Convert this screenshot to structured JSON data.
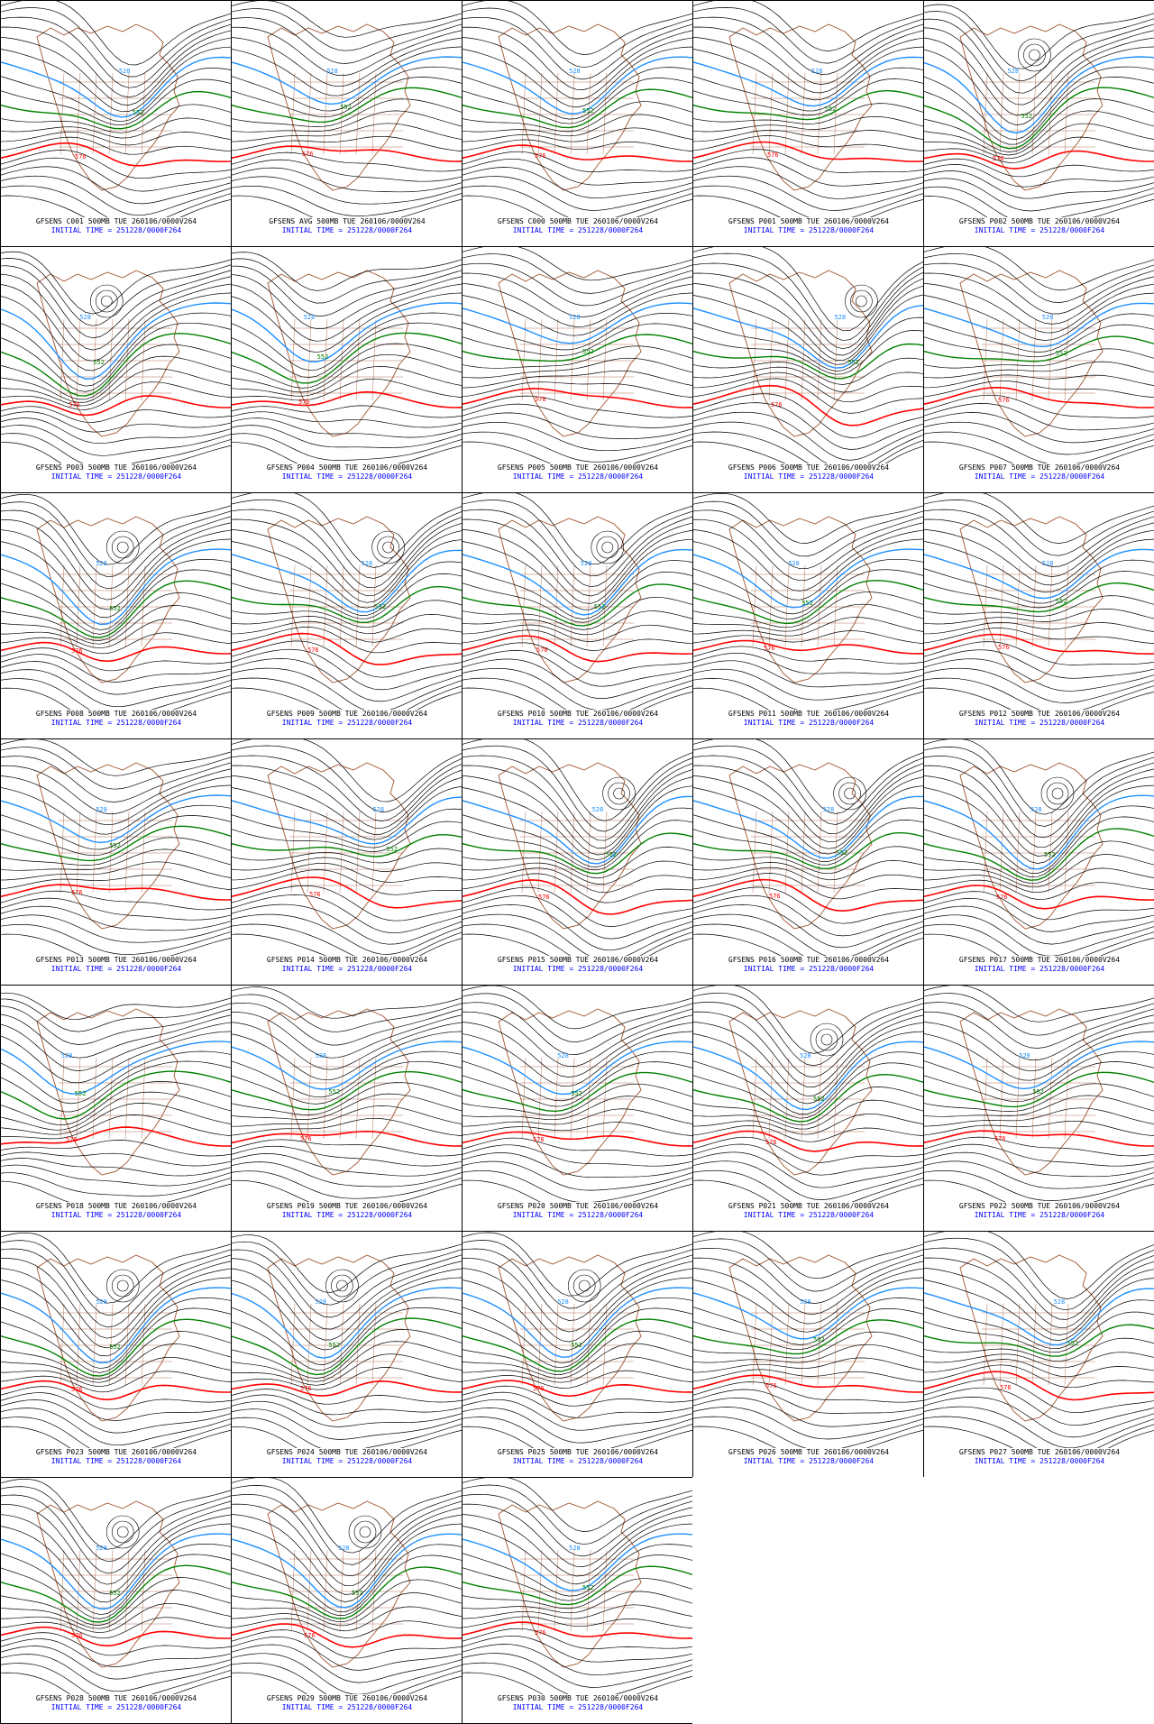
{
  "colors": {
    "contour": "#000000",
    "h552": "#008000",
    "h576": "#ff0000",
    "h528": "#1e90ff",
    "coast": "#a0522d",
    "init_text": "#0000ff"
  },
  "contour_labels": {
    "h528": "528",
    "h552": "552",
    "h576": "576"
  },
  "panels": [
    {
      "title": "GFSENS C001 500MB TUE 260106/0000V264",
      "init": "INITIAL TIME = 251228/0000F264",
      "trough": 0.55,
      "amp": 0.7
    },
    {
      "title": "GFSENS AVG 500MB TUE 260106/0000V264",
      "init": "INITIAL TIME = 251228/0000F264",
      "trough": 0.45,
      "amp": 0.4
    },
    {
      "title": "GFSENS C000 500MB TUE 260106/0000V264",
      "init": "INITIAL TIME = 251228/0000F264",
      "trough": 0.5,
      "amp": 0.6
    },
    {
      "title": "GFSENS P001 500MB TUE 260106/0000V264",
      "init": "INITIAL TIME = 251228/0000F264",
      "trough": 0.55,
      "amp": 0.5
    },
    {
      "title": "GFSENS P002 500MB TUE 260106/0000V264",
      "init": "INITIAL TIME = 251228/0000F264",
      "trough": 0.4,
      "amp": 0.9
    },
    {
      "title": "GFSENS P003 500MB TUE 260106/0000V264",
      "init": "INITIAL TIME = 251228/0000F264",
      "trough": 0.38,
      "amp": 0.9
    },
    {
      "title": "GFSENS P004 500MB TUE 260106/0000V264",
      "init": "INITIAL TIME = 251228/0000F264",
      "trough": 0.35,
      "amp": 0.6
    },
    {
      "title": "GFSENS P005 500MB TUE 260106/0000V264",
      "init": "INITIAL TIME = 251228/0000F264",
      "trough": 0.5,
      "amp": 0.3
    },
    {
      "title": "GFSENS P006 500MB TUE 260106/0000V264",
      "init": "INITIAL TIME = 251228/0000F264",
      "trough": 0.65,
      "amp": 0.9
    },
    {
      "title": "GFSENS P007 500MB TUE 260106/0000V264",
      "init": "INITIAL TIME = 251228/0000F264",
      "trough": 0.55,
      "amp": 0.4
    },
    {
      "title": "GFSENS P008 500MB TUE 260106/0000V264",
      "init": "INITIAL TIME = 251228/0000F264",
      "trough": 0.45,
      "amp": 0.9
    },
    {
      "title": "GFSENS P009 500MB TUE 260106/0000V264",
      "init": "INITIAL TIME = 251228/0000F264",
      "trough": 0.6,
      "amp": 0.8
    },
    {
      "title": "GFSENS P010 500MB TUE 260106/0000V264",
      "init": "INITIAL TIME = 251228/0000F264",
      "trough": 0.55,
      "amp": 0.8
    },
    {
      "title": "GFSENS P011 500MB TUE 260106/0000V264",
      "init": "INITIAL TIME = 251228/0000F264",
      "trough": 0.45,
      "amp": 0.6
    },
    {
      "title": "GFSENS P012 500MB TUE 260106/0000V264",
      "init": "INITIAL TIME = 251228/0000F264",
      "trough": 0.55,
      "amp": 0.5
    },
    {
      "title": "GFSENS P013 500MB TUE 260106/0000V264",
      "init": "INITIAL TIME = 251228/0000F264",
      "trough": 0.45,
      "amp": 0.4
    },
    {
      "title": "GFSENS P014 500MB TUE 260106/0000V264",
      "init": "INITIAL TIME = 251228/0000F264",
      "trough": 0.65,
      "amp": 0.6
    },
    {
      "title": "GFSENS P015 500MB TUE 260106/0000V264",
      "init": "INITIAL TIME = 251228/0000F264",
      "trough": 0.6,
      "amp": 0.9
    },
    {
      "title": "GFSENS P016 500MB TUE 260106/0000V264",
      "init": "INITIAL TIME = 251228/0000F264",
      "trough": 0.6,
      "amp": 0.8
    },
    {
      "title": "GFSENS P017 500MB TUE 260106/0000V264",
      "init": "INITIAL TIME = 251228/0000F264",
      "trough": 0.5,
      "amp": 0.9
    },
    {
      "title": "GFSENS P018 500MB TUE 260106/0000V264",
      "init": "INITIAL TIME = 251228/0000F264",
      "trough": 0.3,
      "amp": 0.5
    },
    {
      "title": "GFSENS P019 500MB TUE 260106/0000V264",
      "init": "INITIAL TIME = 251228/0000F264",
      "trough": 0.4,
      "amp": 0.4
    },
    {
      "title": "GFSENS P020 500MB TUE 260106/0000V264",
      "init": "INITIAL TIME = 251228/0000F264",
      "trough": 0.45,
      "amp": 0.5
    },
    {
      "title": "GFSENS P021 500MB TUE 260106/0000V264",
      "init": "INITIAL TIME = 251228/0000F264",
      "trough": 0.5,
      "amp": 0.8
    },
    {
      "title": "GFSENS P022 500MB TUE 260106/0000V264",
      "init": "INITIAL TIME = 251228/0000F264",
      "trough": 0.45,
      "amp": 0.4
    },
    {
      "title": "GFSENS P023 500MB TUE 260106/0000V264",
      "init": "INITIAL TIME = 251228/0000F264",
      "trough": 0.45,
      "amp": 0.9
    },
    {
      "title": "GFSENS P024 500MB TUE 260106/0000V264",
      "init": "INITIAL TIME = 251228/0000F264",
      "trough": 0.4,
      "amp": 0.8
    },
    {
      "title": "GFSENS P025 500MB TUE 260106/0000V264",
      "init": "INITIAL TIME = 251228/0000F264",
      "trough": 0.45,
      "amp": 0.8
    },
    {
      "title": "GFSENS P026 500MB TUE 260106/0000V264",
      "init": "INITIAL TIME = 251228/0000F264",
      "trough": 0.5,
      "amp": 0.5
    },
    {
      "title": "GFSENS P027 500MB TUE 260106/0000V264",
      "init": "INITIAL TIME = 251228/0000F264",
      "trough": 0.6,
      "amp": 0.7
    },
    {
      "title": "GFSENS P028 500MB TUE 260106/0000V264",
      "init": "INITIAL TIME = 251228/0000F264",
      "trough": 0.45,
      "amp": 0.9
    },
    {
      "title": "GFSENS P029 500MB TUE 260106/0000V264",
      "init": "INITIAL TIME = 251228/0000F264",
      "trough": 0.5,
      "amp": 0.9
    },
    {
      "title": "GFSENS P030 500MB TUE 260106/0000V264",
      "init": "INITIAL TIME = 251228/0000F264",
      "trough": 0.5,
      "amp": 0.6
    }
  ]
}
